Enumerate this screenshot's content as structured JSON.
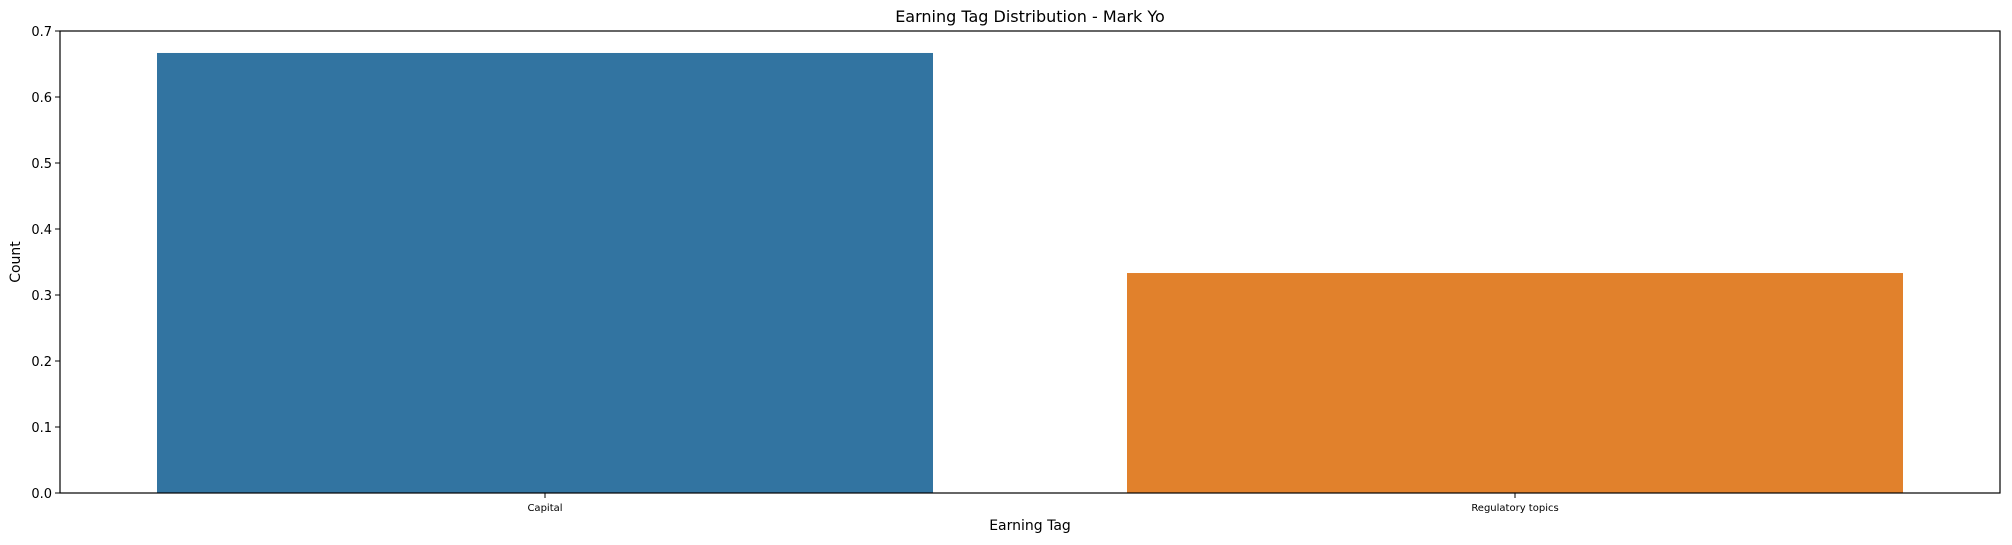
{
  "chart_data": {
    "type": "bar",
    "title": "Earning Tag Distribution - Mark Yo",
    "xlabel": "Earning Tag",
    "ylabel": "Count",
    "categories": [
      "Capital",
      "Regulatory topics"
    ],
    "values": [
      0.6667,
      0.3333
    ],
    "colors": [
      "#3274a1",
      "#e1812c"
    ],
    "ylim": [
      0,
      0.7
    ],
    "yticks": [
      0.0,
      0.1,
      0.2,
      0.3,
      0.4,
      0.5,
      0.6,
      0.7
    ],
    "ytick_labels": [
      "0.0",
      "0.1",
      "0.2",
      "0.3",
      "0.4",
      "0.5",
      "0.6",
      "0.7"
    ],
    "grid": false,
    "legend": "none"
  }
}
